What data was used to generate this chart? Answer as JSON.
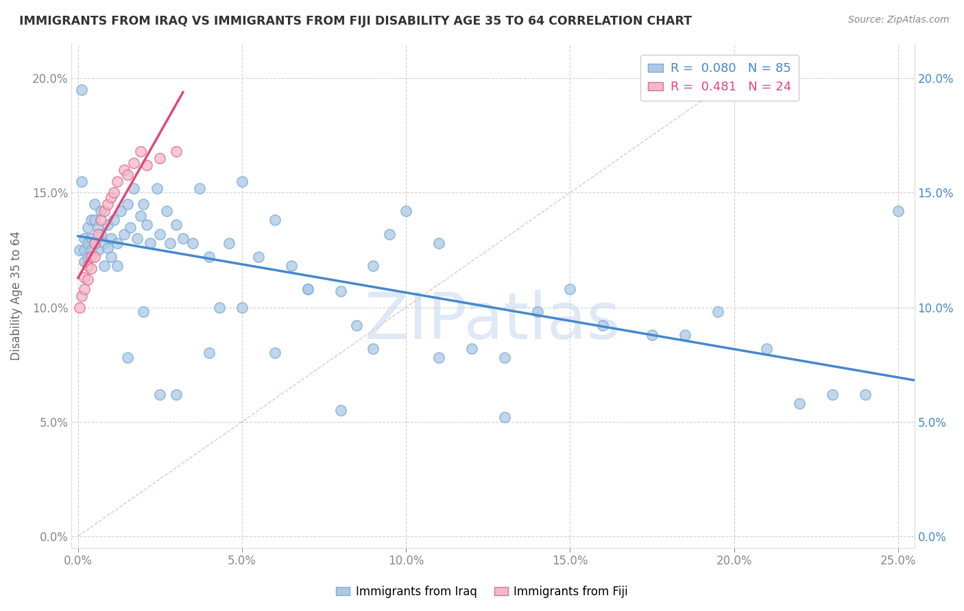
{
  "title": "IMMIGRANTS FROM IRAQ VS IMMIGRANTS FROM FIJI DISABILITY AGE 35 TO 64 CORRELATION CHART",
  "source": "Source: ZipAtlas.com",
  "ylabel": "Disability Age 35 to 64",
  "xlim": [
    -0.002,
    0.255
  ],
  "ylim": [
    -0.005,
    0.215
  ],
  "xticks": [
    0.0,
    0.05,
    0.1,
    0.15,
    0.2,
    0.25
  ],
  "yticks": [
    0.0,
    0.05,
    0.1,
    0.15,
    0.2
  ],
  "iraq_color": "#adc8e6",
  "iraq_edge_color": "#7aadd4",
  "fiji_color": "#f5b8c8",
  "fiji_edge_color": "#e07090",
  "iraq_line_color": "#4488cc",
  "fiji_line_color": "#e04878",
  "diag_color": "#ddaaaa",
  "diag_style": "--",
  "watermark": "ZIPatlas",
  "legend_iraq_r": "R = ",
  "legend_iraq_rv": "0.080",
  "legend_iraq_n": "N = ",
  "legend_iraq_nv": "85",
  "legend_fiji_r": "R = ",
  "legend_fiji_rv": "0.481",
  "legend_fiji_n": "N = ",
  "legend_fiji_nv": "24",
  "legend_title_iraq": "Immigrants from Iraq",
  "legend_title_fiji": "Immigrants from Fiji",
  "right_tick_color": "#4488cc",
  "left_tick_color": "#888888",
  "bottom_label_color": "#4488cc",
  "iraq_x": [
    0.0005,
    0.001,
    0.001,
    0.002,
    0.002,
    0.002,
    0.003,
    0.003,
    0.003,
    0.004,
    0.004,
    0.004,
    0.005,
    0.005,
    0.005,
    0.006,
    0.006,
    0.007,
    0.007,
    0.008,
    0.008,
    0.009,
    0.009,
    0.01,
    0.01,
    0.011,
    0.012,
    0.012,
    0.013,
    0.014,
    0.015,
    0.016,
    0.017,
    0.018,
    0.019,
    0.02,
    0.021,
    0.022,
    0.024,
    0.025,
    0.027,
    0.028,
    0.03,
    0.032,
    0.035,
    0.037,
    0.04,
    0.043,
    0.046,
    0.05,
    0.055,
    0.06,
    0.065,
    0.07,
    0.08,
    0.085,
    0.09,
    0.095,
    0.1,
    0.11,
    0.12,
    0.13,
    0.14,
    0.15,
    0.16,
    0.175,
    0.185,
    0.195,
    0.21,
    0.22,
    0.23,
    0.24,
    0.25,
    0.05,
    0.07,
    0.09,
    0.11,
    0.13,
    0.025,
    0.04,
    0.015,
    0.02,
    0.03,
    0.06,
    0.08
  ],
  "iraq_y": [
    0.125,
    0.195,
    0.155,
    0.13,
    0.125,
    0.12,
    0.135,
    0.128,
    0.122,
    0.138,
    0.13,
    0.125,
    0.145,
    0.138,
    0.128,
    0.135,
    0.125,
    0.142,
    0.132,
    0.128,
    0.118,
    0.136,
    0.126,
    0.13,
    0.122,
    0.138,
    0.128,
    0.118,
    0.142,
    0.132,
    0.145,
    0.135,
    0.152,
    0.13,
    0.14,
    0.145,
    0.136,
    0.128,
    0.152,
    0.132,
    0.142,
    0.128,
    0.136,
    0.13,
    0.128,
    0.152,
    0.122,
    0.1,
    0.128,
    0.155,
    0.122,
    0.138,
    0.118,
    0.108,
    0.107,
    0.092,
    0.118,
    0.132,
    0.142,
    0.128,
    0.082,
    0.078,
    0.098,
    0.108,
    0.092,
    0.088,
    0.088,
    0.098,
    0.082,
    0.058,
    0.062,
    0.062,
    0.142,
    0.1,
    0.108,
    0.082,
    0.078,
    0.052,
    0.062,
    0.08,
    0.078,
    0.098,
    0.062,
    0.08,
    0.055
  ],
  "fiji_x": [
    0.0005,
    0.001,
    0.002,
    0.002,
    0.003,
    0.003,
    0.004,
    0.004,
    0.005,
    0.005,
    0.006,
    0.007,
    0.008,
    0.009,
    0.01,
    0.011,
    0.012,
    0.014,
    0.015,
    0.017,
    0.019,
    0.021,
    0.025,
    0.03
  ],
  "fiji_y": [
    0.1,
    0.105,
    0.113,
    0.108,
    0.118,
    0.112,
    0.122,
    0.117,
    0.128,
    0.122,
    0.132,
    0.138,
    0.142,
    0.145,
    0.148,
    0.15,
    0.155,
    0.16,
    0.158,
    0.163,
    0.168,
    0.162,
    0.165,
    0.168
  ]
}
